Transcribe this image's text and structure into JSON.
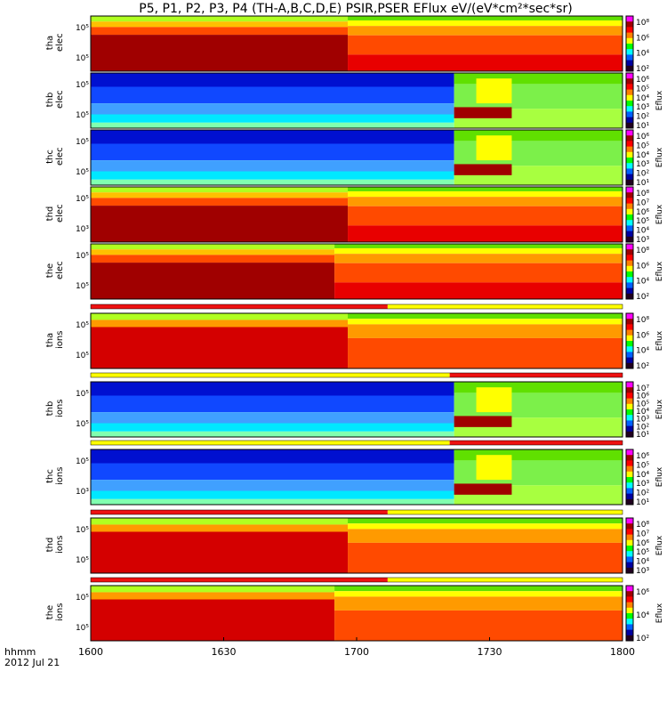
{
  "title": "P5, P1, P2, P3, P4 (TH-A,B,C,D,E) PSIR,PSER EFlux eV/(eV*cm²*sec*sr)",
  "footer": {
    "line1": "hhmm",
    "line2": "2012 Jul 21"
  },
  "colors": {
    "quality_red": "#ee1111",
    "quality_yellow": "#ffff00"
  },
  "chart_data": {
    "type": "heatmap",
    "x": {
      "ticks": [
        "1600",
        "1630",
        "1700",
        "1730",
        "1800"
      ],
      "range_hhmm": [
        "1600",
        "1800"
      ],
      "range_minutes": [
        0,
        120
      ]
    },
    "y_scale": "log",
    "colormap": "rainbow (blue low to dark red high)",
    "panels": [
      {
        "label": "tha elec",
        "probe": "tha",
        "species": "elec",
        "yticks": [
          "10⁵",
          "10⁵"
        ],
        "colorbar": {
          "label": "",
          "ticks": [
            "10⁸",
            "10⁶",
            "10⁴",
            "10²"
          ]
        },
        "segments": [
          {
            "start": 0,
            "end": 58,
            "level": "dark red high flux"
          },
          {
            "start": 58,
            "end": 120,
            "level": "orange high flux"
          }
        ]
      },
      {
        "label": "thb elec",
        "probe": "thb",
        "species": "elec",
        "yticks": [
          "10⁵",
          "10⁵"
        ],
        "colorbar": {
          "label": "Eflux",
          "ticks": [
            "10⁶",
            "10⁵",
            "10⁴",
            "10³",
            "10²",
            "10¹"
          ]
        },
        "segments": [
          {
            "start": 0,
            "end": 82,
            "level": "blue low flux"
          },
          {
            "start": 82,
            "end": 120,
            "level": "green moderate flux"
          }
        ]
      },
      {
        "label": "thc elec",
        "probe": "thc",
        "species": "elec",
        "yticks": [
          "10⁵",
          "10⁵"
        ],
        "colorbar": {
          "label": "Eflux",
          "ticks": [
            "10⁶",
            "10⁵",
            "10⁴",
            "10³",
            "10²",
            "10¹"
          ]
        },
        "segments": [
          {
            "start": 0,
            "end": 82,
            "level": "blue low flux"
          },
          {
            "start": 82,
            "end": 120,
            "level": "green moderate flux"
          }
        ]
      },
      {
        "label": "thd elec",
        "probe": "thd",
        "species": "elec",
        "yticks": [
          "10⁵",
          "10³"
        ],
        "colorbar": {
          "label": "Eflux",
          "ticks": [
            "10⁸",
            "10⁷",
            "10⁶",
            "10⁵",
            "10⁴",
            "10³"
          ]
        },
        "segments": [
          {
            "start": 0,
            "end": 58,
            "level": "dark red high flux"
          },
          {
            "start": 58,
            "end": 120,
            "level": "orange high flux"
          }
        ]
      },
      {
        "label": "the elec",
        "probe": "the",
        "species": "elec",
        "yticks": [
          "10⁵",
          "10⁵"
        ],
        "colorbar": {
          "label": "Eflux",
          "ticks": [
            "10⁸",
            "10⁶",
            "10⁴",
            "10²"
          ]
        },
        "segments": [
          {
            "start": 0,
            "end": 55,
            "level": "dark red high flux"
          },
          {
            "start": 55,
            "end": 120,
            "level": "orange high flux"
          }
        ]
      },
      {
        "label": "tha ions",
        "probe": "tha",
        "species": "ions",
        "yticks": [
          "10⁵",
          "10⁵"
        ],
        "colorbar": {
          "label": "Eflux",
          "ticks": [
            "10⁸",
            "10⁶",
            "10⁴",
            "10²"
          ]
        },
        "segments": [
          {
            "start": 0,
            "end": 58,
            "level": "red high flux"
          },
          {
            "start": 58,
            "end": 120,
            "level": "orange moderate flux"
          }
        ]
      },
      {
        "label": "thb ions",
        "probe": "thb",
        "species": "ions",
        "yticks": [
          "10⁵",
          "10⁵"
        ],
        "colorbar": {
          "label": "Eflux",
          "ticks": [
            "10⁷",
            "10⁶",
            "10⁵",
            "10⁴",
            "10³",
            "10²",
            "10¹"
          ]
        },
        "segments": [
          {
            "start": 0,
            "end": 82,
            "level": "blue low flux"
          },
          {
            "start": 82,
            "end": 120,
            "level": "green moderate flux"
          }
        ]
      },
      {
        "label": "thc ions",
        "probe": "thc",
        "species": "ions",
        "yticks": [
          "10⁵",
          "10³"
        ],
        "colorbar": {
          "label": "Eflux",
          "ticks": [
            "10⁶",
            "10⁵",
            "10⁴",
            "10³",
            "10²",
            "10¹"
          ]
        },
        "segments": [
          {
            "start": 0,
            "end": 82,
            "level": "blue low flux"
          },
          {
            "start": 82,
            "end": 120,
            "level": "green moderate flux"
          }
        ]
      },
      {
        "label": "thd ions",
        "probe": "thd",
        "species": "ions",
        "yticks": [
          "10⁵",
          "10⁵"
        ],
        "colorbar": {
          "label": "Eflux",
          "ticks": [
            "10⁸",
            "10⁷",
            "10⁶",
            "10⁵",
            "10⁴",
            "10³"
          ]
        },
        "segments": [
          {
            "start": 0,
            "end": 58,
            "level": "dark red high flux"
          },
          {
            "start": 58,
            "end": 120,
            "level": "orange high flux"
          }
        ]
      },
      {
        "label": "the ions",
        "probe": "the",
        "species": "ions",
        "yticks": [
          "10⁵",
          "10⁵"
        ],
        "colorbar": {
          "label": "Eflux",
          "ticks": [
            "10⁶",
            "10⁴",
            "10²"
          ]
        },
        "segments": [
          {
            "start": 0,
            "end": 55,
            "level": "dark red high flux"
          },
          {
            "start": 55,
            "end": 120,
            "level": "orange high flux"
          }
        ]
      }
    ],
    "quality_bars": [
      {
        "after_panel": "the elec",
        "red_until_minute": 67,
        "yellow_from_minute": 67
      },
      {
        "after_panel": "tha ions",
        "yellow_until_minute": 81,
        "red_from_minute": 81
      },
      {
        "after_panel": "thb ions",
        "yellow_until_minute": 81,
        "red_from_minute": 81
      },
      {
        "after_panel": "thc ions",
        "red_until_minute": 67,
        "yellow_from_minute": 67
      },
      {
        "after_panel": "thd ions",
        "red_until_minute": 67,
        "yellow_from_minute": 67
      }
    ]
  }
}
